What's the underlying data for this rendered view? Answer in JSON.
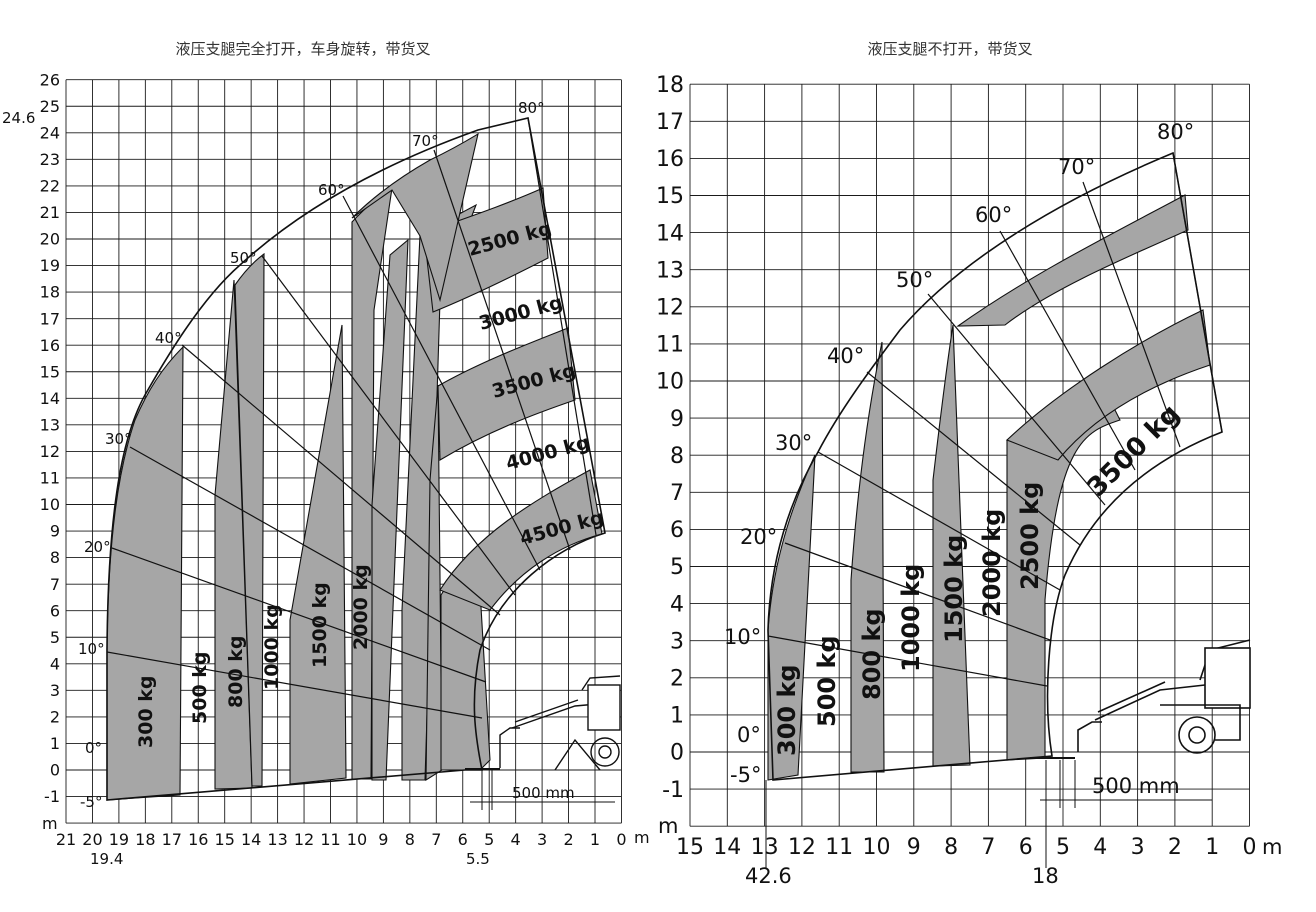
{
  "chart_data": [
    {
      "type": "load-chart",
      "title": "液压支腿完全打开，车身旋转，带货叉",
      "x_unit": "m",
      "y_unit": "m",
      "xlim": [
        0,
        21
      ],
      "ylim": [
        -2,
        26
      ],
      "x_ticks": [
        "21",
        "20",
        "19",
        "18",
        "17",
        "16",
        "15",
        "14",
        "13",
        "12",
        "11",
        "10",
        "9",
        "8",
        "7",
        "6",
        "5",
        "4",
        "3",
        "2",
        "1",
        "0"
      ],
      "y_ticks": [
        "-1",
        "0",
        "1",
        "2",
        "3",
        "4",
        "5",
        "6",
        "7",
        "8",
        "9",
        "10",
        "11",
        "12",
        "13",
        "14",
        "15",
        "16",
        "17",
        "18",
        "19",
        "20",
        "21",
        "22",
        "23",
        "24",
        "25",
        "26"
      ],
      "max_height_label": "24.6",
      "max_reach_label": "19.4",
      "min_reach_label": "5.5",
      "dimension_label": "500 mm",
      "angles": [
        "-5°",
        "0°",
        "10°",
        "20°",
        "30°",
        "40°",
        "50°",
        "60°",
        "70°",
        "80°"
      ],
      "vertical_zones": [
        {
          "label": "300 kg",
          "x_outer": 19.0,
          "x_inner": 17.0
        },
        {
          "label": "500 kg",
          "x_outer": 17.0,
          "x_inner": 15.6
        },
        {
          "label": "800 kg",
          "x_outer": 15.6,
          "x_inner": 14.3
        },
        {
          "label": "1000 kg",
          "x_outer": 14.3,
          "x_inner": 12.5
        },
        {
          "label": "1500 kg",
          "x_outer": 12.5,
          "x_inner": 10.4
        },
        {
          "label": "2000 kg",
          "x_outer": 10.4,
          "x_inner": 8.9
        }
      ],
      "arc_zones": [
        {
          "label": "2500 kg"
        },
        {
          "label": "3000 kg"
        },
        {
          "label": "3500 kg"
        },
        {
          "label": "4000 kg"
        },
        {
          "label": "4500 kg"
        }
      ]
    },
    {
      "type": "load-chart",
      "title": "液压支腿不打开，带货叉",
      "x_unit": "m",
      "y_unit": "m",
      "xlim": [
        0,
        15
      ],
      "ylim": [
        -2,
        18
      ],
      "x_ticks": [
        "15",
        "14",
        "13",
        "12",
        "11",
        "10",
        "9",
        "8",
        "7",
        "6",
        "5",
        "4",
        "3",
        "2",
        "1",
        "0"
      ],
      "y_ticks": [
        "-1",
        "0",
        "1",
        "2",
        "3",
        "4",
        "5",
        "6",
        "7",
        "8",
        "9",
        "10",
        "11",
        "12",
        "13",
        "14",
        "15",
        "16",
        "17",
        "18"
      ],
      "max_reach_label": "42.6",
      "min_reach_label": "18",
      "dimension_label": "500 mm",
      "angles": [
        "-5°",
        "0°",
        "10°",
        "20°",
        "30°",
        "40°",
        "50°",
        "60°",
        "70°",
        "80°"
      ],
      "vertical_zones": [
        {
          "label": "300 kg"
        },
        {
          "label": "500 kg"
        },
        {
          "label": "800 kg"
        },
        {
          "label": "1000 kg"
        },
        {
          "label": "1500 kg"
        },
        {
          "label": "2000 kg"
        },
        {
          "label": "2500 kg"
        }
      ],
      "arc_zones": [
        {
          "label": "3500 kg"
        }
      ]
    }
  ]
}
